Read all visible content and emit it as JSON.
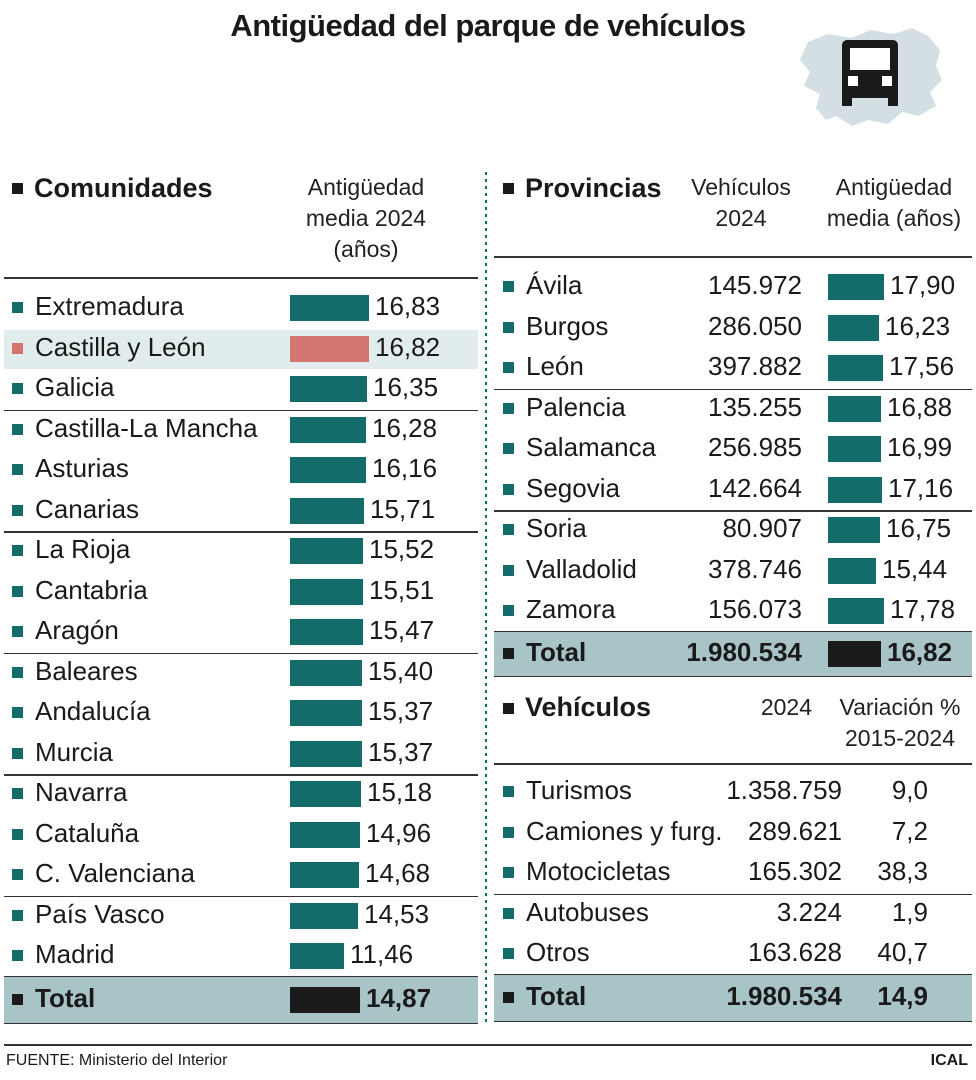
{
  "title": "Antigüedad del parque de vehículos",
  "icons": {
    "map": "castilla-leon-map-icon",
    "car": "car-icon"
  },
  "colors": {
    "teal": "#136b6a",
    "highlight_bar": "#d4756f",
    "total_bar": "#1a1a1a",
    "total_band": "#a9c4c7",
    "highlight_band": "#e1ecec"
  },
  "comunidades": {
    "header": "Comunidades",
    "col_header": [
      "Antigüedad",
      "media 2024",
      "(años)"
    ],
    "rows": [
      {
        "name": "Extremadura",
        "value": "16,83",
        "v": 16.83
      },
      {
        "name": "Castilla y León",
        "value": "16,82",
        "v": 16.82,
        "highlight": true
      },
      {
        "name": "Galicia",
        "value": "16,35",
        "v": 16.35
      },
      {
        "name": "Castilla-La Mancha",
        "value": "16,28",
        "v": 16.28
      },
      {
        "name": "Asturias",
        "value": "16,16",
        "v": 16.16
      },
      {
        "name": "Canarias",
        "value": "15,71",
        "v": 15.71
      },
      {
        "name": "La Rioja",
        "value": "15,52",
        "v": 15.52
      },
      {
        "name": "Cantabria",
        "value": "15,51",
        "v": 15.51
      },
      {
        "name": "Aragón",
        "value": "15,47",
        "v": 15.47
      },
      {
        "name": "Baleares",
        "value": "15,40",
        "v": 15.4
      },
      {
        "name": "Andalucía",
        "value": "15,37",
        "v": 15.37
      },
      {
        "name": "Murcia",
        "value": "15,37",
        "v": 15.37
      },
      {
        "name": "Navarra",
        "value": "15,18",
        "v": 15.18
      },
      {
        "name": "Cataluña",
        "value": "14,96",
        "v": 14.96
      },
      {
        "name": "C. Valenciana",
        "value": "14,68",
        "v": 14.68
      },
      {
        "name": "País Vasco",
        "value": "14,53",
        "v": 14.53
      },
      {
        "name": "Madrid",
        "value": "11,46",
        "v": 11.46
      }
    ],
    "total": {
      "name": "Total",
      "value": "14,87",
      "v": 14.87
    }
  },
  "provincias": {
    "header": "Provincias",
    "col_vehiculos": [
      "Vehículos",
      "2024"
    ],
    "col_antiguedad": [
      "Antigüedad",
      "media (años)"
    ],
    "rows": [
      {
        "name": "Ávila",
        "vehiculos": "145.972",
        "value": "17,90",
        "v": 17.9
      },
      {
        "name": "Burgos",
        "vehiculos": "286.050",
        "value": "16,23",
        "v": 16.23
      },
      {
        "name": "León",
        "vehiculos": "397.882",
        "value": "17,56",
        "v": 17.56
      },
      {
        "name": "Palencia",
        "vehiculos": "135.255",
        "value": "16,88",
        "v": 16.88
      },
      {
        "name": "Salamanca",
        "vehiculos": "256.985",
        "value": "16,99",
        "v": 16.99
      },
      {
        "name": "Segovia",
        "vehiculos": "142.664",
        "value": "17,16",
        "v": 17.16
      },
      {
        "name": "Soria",
        "vehiculos": "80.907",
        "value": "16,75",
        "v": 16.75
      },
      {
        "name": "Valladolid",
        "vehiculos": "378.746",
        "value": "15,44",
        "v": 15.44
      },
      {
        "name": "Zamora",
        "vehiculos": "156.073",
        "value": "17,78",
        "v": 17.78
      }
    ],
    "total": {
      "name": "Total",
      "vehiculos": "1.980.534",
      "value": "16,82",
      "v": 16.82
    }
  },
  "vehiculos": {
    "header": "Vehículos",
    "col_2024": "2024",
    "col_variacion": [
      "Variación %",
      "2015-2024"
    ],
    "rows": [
      {
        "name": "Turismos",
        "count": "1.358.759",
        "var": "9,0"
      },
      {
        "name": "Camiones y furg.",
        "count": "289.621",
        "var": "7,2"
      },
      {
        "name": "Motocicletas",
        "count": "165.302",
        "var": "38,3"
      },
      {
        "name": "Autobuses",
        "count": "3.224",
        "var": "1,9"
      },
      {
        "name": "Otros",
        "count": "163.628",
        "var": "40,7"
      }
    ],
    "total": {
      "name": "Total",
      "count": "1.980.534",
      "var": "14,9"
    }
  },
  "footer": {
    "source": "FUENTE: Ministerio del Interior",
    "brand": "ICAL"
  },
  "chart_data": {
    "type": "table",
    "title": "Antigüedad del parque de vehículos",
    "tables": [
      {
        "name": "Comunidades",
        "metric": "Antigüedad media 2024 (años)",
        "categories": [
          "Extremadura",
          "Castilla y León",
          "Galicia",
          "Castilla-La Mancha",
          "Asturias",
          "Canarias",
          "La Rioja",
          "Cantabria",
          "Aragón",
          "Baleares",
          "Andalucía",
          "Murcia",
          "Navarra",
          "Cataluña",
          "C. Valenciana",
          "País Vasco",
          "Madrid",
          "Total"
        ],
        "values": [
          16.83,
          16.82,
          16.35,
          16.28,
          16.16,
          15.71,
          15.52,
          15.51,
          15.47,
          15.4,
          15.37,
          15.37,
          15.18,
          14.96,
          14.68,
          14.53,
          11.46,
          14.87
        ]
      },
      {
        "name": "Provincias",
        "metric": "Antigüedad media (años)",
        "categories": [
          "Ávila",
          "Burgos",
          "León",
          "Palencia",
          "Salamanca",
          "Segovia",
          "Soria",
          "Valladolid",
          "Zamora",
          "Total"
        ],
        "vehiculos_2024": [
          145972,
          286050,
          397882,
          135255,
          256985,
          142664,
          80907,
          378746,
          156073,
          1980534
        ],
        "values": [
          17.9,
          16.23,
          17.56,
          16.88,
          16.99,
          17.16,
          16.75,
          15.44,
          17.78,
          16.82
        ]
      },
      {
        "name": "Vehículos",
        "metric": "2024 / Variación % 2015-2024",
        "categories": [
          "Turismos",
          "Camiones y furg.",
          "Motocicletas",
          "Autobuses",
          "Otros",
          "Total"
        ],
        "count_2024": [
          1358759,
          289621,
          165302,
          3224,
          163628,
          1980534
        ],
        "variacion_pct": [
          9.0,
          7.2,
          38.3,
          1.9,
          40.7,
          14.9
        ]
      }
    ]
  }
}
